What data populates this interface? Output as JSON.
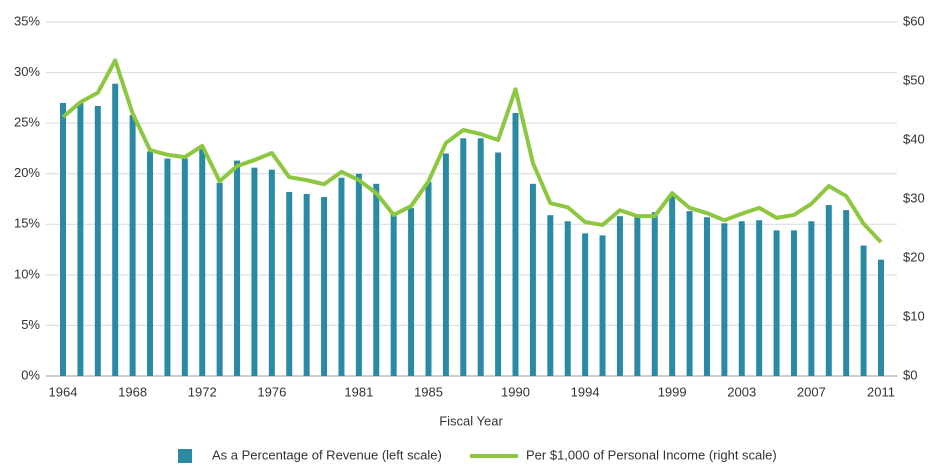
{
  "chart_data": {
    "type": "bar_line",
    "x_label": "Fiscal Year",
    "categories": [
      "1964",
      null,
      null,
      null,
      "1968",
      null,
      null,
      null,
      "1972",
      null,
      null,
      null,
      "1976",
      null,
      null,
      null,
      null,
      "1981",
      null,
      null,
      null,
      "1985",
      null,
      null,
      null,
      null,
      "1990",
      null,
      null,
      null,
      "1994",
      null,
      null,
      null,
      null,
      "1999",
      null,
      null,
      null,
      "2003",
      null,
      null,
      null,
      "2007",
      null,
      null,
      null,
      "2011"
    ],
    "series": [
      {
        "name": "As a Percentage of Revenue (left scale)",
        "color": "#2a8aa3",
        "type": "bar",
        "axis": "y",
        "values": [
          27.0,
          27.0,
          26.7,
          28.9,
          25.8,
          22.2,
          21.5,
          21.5,
          22.5,
          19.1,
          21.3,
          20.6,
          20.4,
          18.2,
          18.0,
          17.7,
          19.6,
          20.0,
          19.0,
          16.0,
          16.6,
          19.2,
          22.0,
          23.5,
          23.5,
          22.1,
          26.0,
          19.0,
          15.9,
          15.3,
          14.1,
          13.9,
          15.8,
          15.7,
          16.2,
          17.8,
          16.3,
          15.7,
          15.1,
          15.3,
          15.4,
          14.4,
          14.4,
          15.3,
          16.9,
          16.4,
          12.9,
          11.5
        ]
      },
      {
        "name": "Per $1,000 of Personal Income (right scale)",
        "color": "#8dc63f",
        "type": "line",
        "axis": "y2",
        "values": [
          43.9,
          46.4,
          48.0,
          53.5,
          44.5,
          38.3,
          37.5,
          37.1,
          39.0,
          33.0,
          35.6,
          36.6,
          37.8,
          33.7,
          33.2,
          32.5,
          34.6,
          33.2,
          31.0,
          27.3,
          28.8,
          33.0,
          39.5,
          41.7,
          41.0,
          40.0,
          48.6,
          36.1,
          29.3,
          28.6,
          26.1,
          25.6,
          28.1,
          27.1,
          27.1,
          31.0,
          28.5,
          27.6,
          26.4,
          27.5,
          28.5,
          26.8,
          27.3,
          29.2,
          32.2,
          30.5,
          25.8,
          22.7
        ]
      }
    ],
    "ylim": [
      0,
      35
    ],
    "yticks": [
      {
        "value": 0,
        "label": "0%"
      },
      {
        "value": 5,
        "label": "5%"
      },
      {
        "value": 10,
        "label": "10%"
      },
      {
        "value": 15,
        "label": "15%"
      },
      {
        "value": 20,
        "label": "20%"
      },
      {
        "value": 25,
        "label": "25%"
      },
      {
        "value": 30,
        "label": "30%"
      },
      {
        "value": 35,
        "label": "35%"
      }
    ],
    "y2lim": [
      0,
      60
    ],
    "y2ticks": [
      {
        "value": 0,
        "label": "$0"
      },
      {
        "value": 10,
        "label": "$10"
      },
      {
        "value": 20,
        "label": "$20"
      },
      {
        "value": 30,
        "label": "$30"
      },
      {
        "value": 40,
        "label": "$40"
      },
      {
        "value": 50,
        "label": "$50"
      },
      {
        "value": 60,
        "label": "$60"
      }
    ],
    "grid": true,
    "legend": "bottom"
  }
}
